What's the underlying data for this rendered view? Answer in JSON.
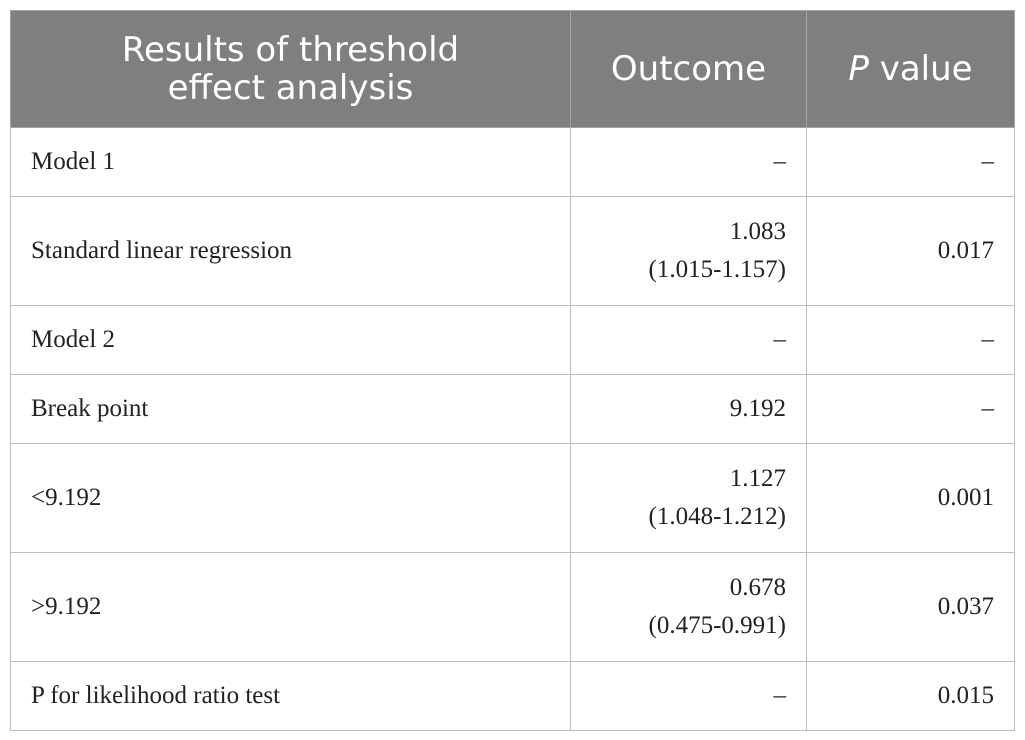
{
  "table": {
    "headers": {
      "col1_line1": "Results of threshold",
      "col1_line2": "effect analysis",
      "col2": "Outcome",
      "col3_italic": "P",
      "col3_rest": " value"
    },
    "rows": [
      {
        "label": "Model 1",
        "outcome": "–",
        "outcome_ci": "",
        "p_value": "–"
      },
      {
        "label": "Standard linear regression",
        "outcome": "1.083",
        "outcome_ci": "(1.015-1.157)",
        "p_value": "0.017"
      },
      {
        "label": "Model 2",
        "outcome": "–",
        "outcome_ci": "",
        "p_value": "–"
      },
      {
        "label": "Break point",
        "outcome": "9.192",
        "outcome_ci": "",
        "p_value": "–"
      },
      {
        "label": "<9.192",
        "outcome": "1.127",
        "outcome_ci": "(1.048-1.212)",
        "p_value": "0.001"
      },
      {
        "label": ">9.192",
        "outcome": "0.678",
        "outcome_ci": "(0.475-0.991)",
        "p_value": "0.037"
      },
      {
        "label": "P for likelihood ratio test",
        "outcome": "–",
        "outcome_ci": "",
        "p_value": "0.015"
      }
    ]
  }
}
